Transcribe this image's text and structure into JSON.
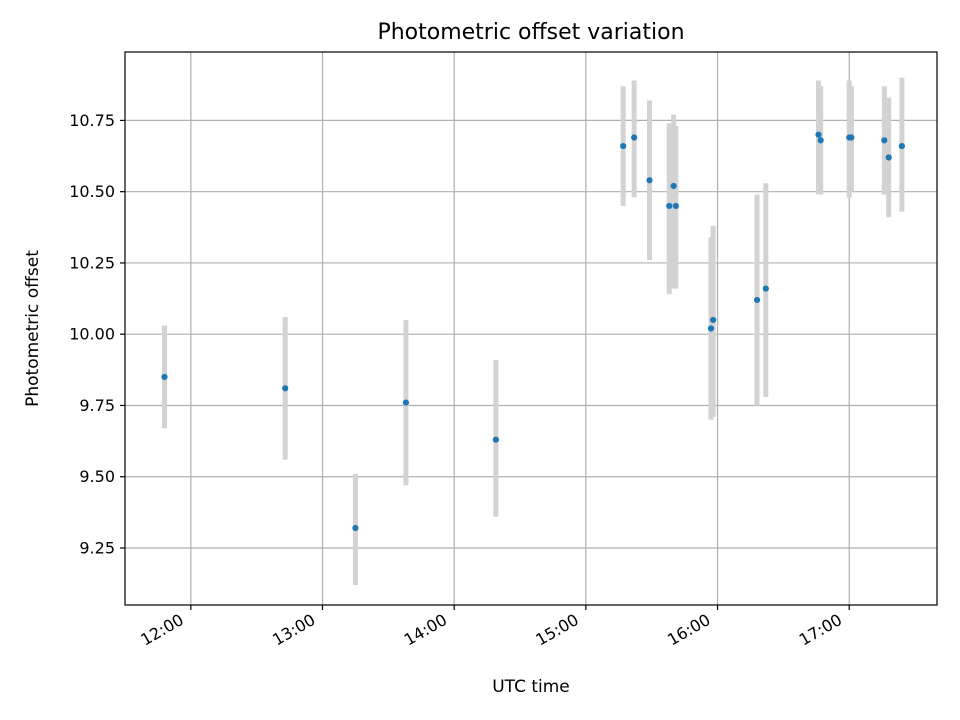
{
  "chart_data": {
    "type": "scatter",
    "title": "Photometric offset variation",
    "xlabel": "UTC time",
    "ylabel": "Photometric offset",
    "grid": true,
    "x_unit": "UTC time",
    "xlim": [
      "11:30",
      "17:40"
    ],
    "ylim": [
      9.05,
      10.99
    ],
    "x_ticks": [
      "12:00",
      "13:00",
      "14:00",
      "15:00",
      "16:00",
      "17:00"
    ],
    "y_ticks": [
      9.25,
      9.5,
      9.75,
      10.0,
      10.25,
      10.5,
      10.75
    ],
    "y_tick_labels": [
      "9.25",
      "9.50",
      "9.75",
      "10.00",
      "10.25",
      "10.50",
      "10.75"
    ],
    "point_color": "#1f77b4",
    "errorbar_color": "#d3d3d3",
    "points": [
      {
        "x": "11:48",
        "y": 9.85,
        "ylo": 9.67,
        "yhi": 10.03
      },
      {
        "x": "12:43",
        "y": 9.81,
        "ylo": 9.56,
        "yhi": 10.06
      },
      {
        "x": "13:15",
        "y": 9.32,
        "ylo": 9.12,
        "yhi": 9.51
      },
      {
        "x": "13:38",
        "y": 9.76,
        "ylo": 9.47,
        "yhi": 10.05
      },
      {
        "x": "14:19",
        "y": 9.63,
        "ylo": 9.36,
        "yhi": 9.91
      },
      {
        "x": "15:17",
        "y": 10.66,
        "ylo": 10.45,
        "yhi": 10.87
      },
      {
        "x": "15:22",
        "y": 10.69,
        "ylo": 10.48,
        "yhi": 10.89
      },
      {
        "x": "15:29",
        "y": 10.54,
        "ylo": 10.26,
        "yhi": 10.82
      },
      {
        "x": "15:38",
        "y": 10.45,
        "ylo": 10.14,
        "yhi": 10.74
      },
      {
        "x": "15:40",
        "y": 10.52,
        "ylo": 10.16,
        "yhi": 10.77
      },
      {
        "x": "15:41",
        "y": 10.45,
        "ylo": 10.16,
        "yhi": 10.73
      },
      {
        "x": "15:57",
        "y": 10.02,
        "ylo": 9.7,
        "yhi": 10.34
      },
      {
        "x": "15:58",
        "y": 10.05,
        "ylo": 9.71,
        "yhi": 10.38
      },
      {
        "x": "16:18",
        "y": 10.12,
        "ylo": 9.75,
        "yhi": 10.49
      },
      {
        "x": "16:22",
        "y": 10.16,
        "ylo": 9.78,
        "yhi": 10.53
      },
      {
        "x": "16:46",
        "y": 10.7,
        "ylo": 10.49,
        "yhi": 10.89
      },
      {
        "x": "16:47",
        "y": 10.68,
        "ylo": 10.49,
        "yhi": 10.87
      },
      {
        "x": "17:00",
        "y": 10.69,
        "ylo": 10.48,
        "yhi": 10.89
      },
      {
        "x": "17:01",
        "y": 10.69,
        "ylo": 10.5,
        "yhi": 10.87
      },
      {
        "x": "17:16",
        "y": 10.68,
        "ylo": 10.49,
        "yhi": 10.87
      },
      {
        "x": "17:18",
        "y": 10.62,
        "ylo": 10.41,
        "yhi": 10.83
      },
      {
        "x": "17:24",
        "y": 10.66,
        "ylo": 10.43,
        "yhi": 10.9
      }
    ]
  }
}
